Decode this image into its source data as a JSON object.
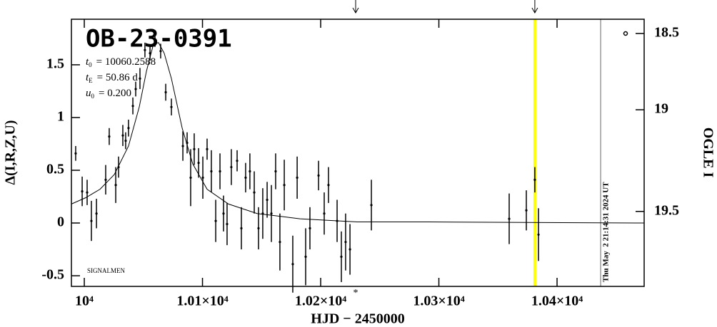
{
  "chart_data": {
    "type": "scatter",
    "title": "OB-23-0391",
    "params": [
      {
        "symbol": "t",
        "sub": "0",
        "text": "= 10060.2588"
      },
      {
        "symbol": "t",
        "sub": "E",
        "text": "= 50.86  d"
      },
      {
        "symbol": "u",
        "sub": "0",
        "text": "= 0.200"
      }
    ],
    "note": "SIGNALMEN",
    "x_label": "HJD − 2450000",
    "y_label": "Δ(I,R,Z,U)",
    "y2_label": "OGLE I",
    "xlim": [
      9989.1,
      10473.7
    ],
    "ylim": [
      -0.601,
      1.932
    ],
    "y2lim": [
      18.388,
      19.794
    ],
    "xticks": [
      {
        "value": 10000,
        "label": "10⁴"
      },
      {
        "value": 10100,
        "label": "1.01×10⁴"
      },
      {
        "value": 10200,
        "label": "1.02×10⁴"
      },
      {
        "value": 10300,
        "label": "1.03×10⁴"
      },
      {
        "value": 10400,
        "label": "1.04×10⁴"
      }
    ],
    "yticks": [
      -0.5,
      0,
      0.5,
      1,
      1.5
    ],
    "y2ticks": [
      18.5,
      19,
      19.5
    ],
    "points": {
      "color": "#000000",
      "x": [
        9992.7,
        9998.2,
        10002.4,
        10006.0,
        10010.3,
        10018.1,
        10021.1,
        10026.6,
        10029.0,
        10032.6,
        10035.0,
        10037.4,
        10041.1,
        10043.5,
        10047.1,
        10051.3,
        10055.6,
        10059.8,
        10064.6,
        10068.9,
        10073.7,
        10083.4,
        10087.0,
        10090.0,
        10093.0,
        10096.7,
        10100.3,
        10103.9,
        10107.5,
        10111.2,
        10114.8,
        10117.8,
        10120.8,
        10124.4,
        10129.3,
        10132.9,
        10136.5,
        10140.1,
        10143.8,
        10147.4,
        10151.0,
        10154.7,
        10158.3,
        10161.9,
        10165.5,
        10169.2,
        10176.4,
        10180.1,
        10187.3,
        10190.9,
        10198.2,
        10203.0,
        10206.6,
        10213.9,
        10217.5,
        10221.1,
        10224.8,
        10242.9,
        10359.5,
        10374.0,
        10381.2,
        10384.3
      ],
      "values": [
        0.66,
        0.3,
        0.29,
        0.02,
        0.09,
        0.41,
        0.82,
        0.36,
        0.53,
        0.83,
        0.78,
        0.9,
        1.11,
        1.27,
        1.37,
        1.64,
        1.61,
        1.72,
        1.63,
        1.24,
        1.1,
        0.73,
        0.76,
        0.43,
        0.7,
        0.57,
        0.43,
        0.7,
        0.49,
        0.02,
        0.49,
        0.09,
        -0.01,
        0.53,
        0.59,
        -0.05,
        0.43,
        0.49,
        0.29,
        -0.05,
        0.09,
        0.22,
        0.09,
        0.49,
        -0.18,
        0.36,
        -0.39,
        0.43,
        -0.32,
        -0.05,
        0.45,
        0.09,
        0.36,
        0.02,
        -0.32,
        -0.18,
        -0.25,
        0.17,
        0.04,
        0.12,
        0.41,
        -0.11
      ],
      "errors": [
        0.07,
        0.14,
        0.12,
        0.19,
        0.14,
        0.14,
        0.08,
        0.17,
        0.1,
        0.1,
        0.08,
        0.08,
        0.08,
        0.07,
        0.1,
        0.07,
        0.07,
        0.05,
        0.07,
        0.08,
        0.08,
        0.14,
        0.1,
        0.27,
        0.15,
        0.14,
        0.2,
        0.1,
        0.2,
        0.2,
        0.17,
        0.17,
        0.2,
        0.17,
        0.1,
        0.2,
        0.14,
        0.17,
        0.2,
        0.2,
        0.24,
        0.17,
        0.27,
        0.17,
        0.27,
        0.24,
        0.27,
        0.2,
        0.27,
        0.2,
        0.14,
        0.2,
        0.17,
        0.2,
        0.24,
        0.27,
        0.24,
        0.24,
        0.24,
        0.19,
        0.12,
        0.25
      ]
    },
    "model": {
      "color": "#000000",
      "x": [
        9989.1,
        10001.2,
        10013.3,
        10025.4,
        10037.4,
        10046.5,
        10052.6,
        10058.6,
        10062.8,
        10067.6,
        10073.7,
        10082.8,
        10091.8,
        10103.9,
        10122.0,
        10146.2,
        10182.5,
        10230.8,
        10291.2,
        10473.7
      ],
      "values": [
        0.18,
        0.24,
        0.32,
        0.46,
        0.73,
        1.1,
        1.44,
        1.7,
        1.71,
        1.61,
        1.37,
        0.9,
        0.56,
        0.32,
        0.18,
        0.09,
        0.04,
        0.01,
        0.01,
        0.0
      ]
    },
    "markers": [
      {
        "x": 10381.2,
        "color": "#ffff00"
      },
      {
        "x": 10436.9,
        "color": "#999999",
        "label": "Thu May  2 21:14:31 2024 UT"
      }
    ],
    "arrows": [
      10229.6,
      10381.2
    ],
    "asterisk": {
      "x": 10229.6,
      "label": "*"
    }
  }
}
